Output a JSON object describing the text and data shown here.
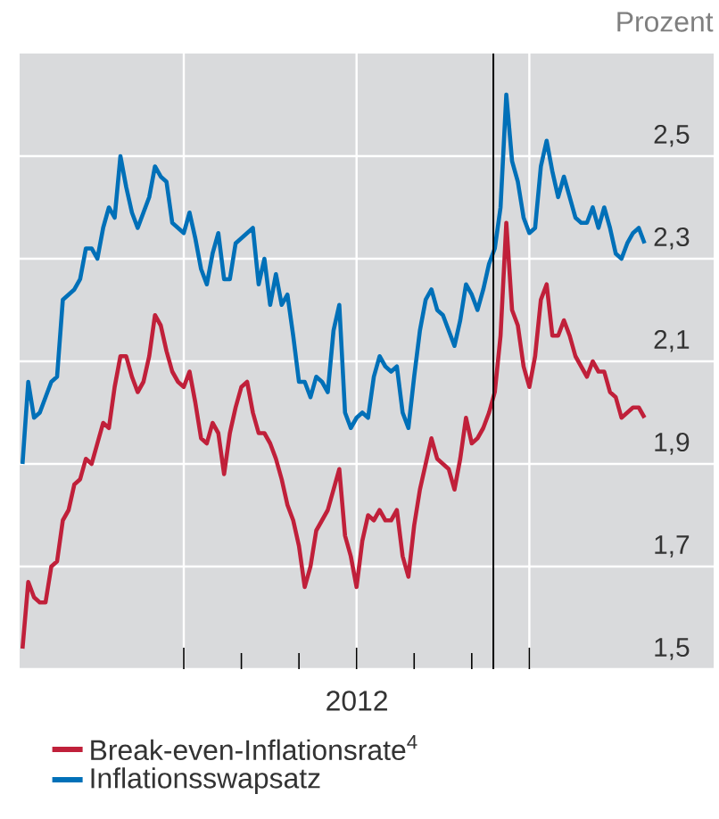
{
  "chart_data": {
    "type": "line",
    "xlabel": "2012",
    "ylabel": "Prozent",
    "categories": [
      null,
      null,
      null,
      null,
      null,
      null,
      null,
      null,
      null,
      null,
      null,
      null,
      null,
      null,
      null,
      null,
      null,
      null,
      null,
      null,
      null,
      null,
      null,
      null,
      null,
      null,
      null,
      null,
      null,
      null,
      null,
      null,
      null,
      null,
      null,
      null,
      null,
      null,
      null,
      null,
      null,
      null,
      null,
      null,
      null,
      null,
      null,
      null,
      null,
      null,
      null,
      null,
      null,
      null,
      null,
      null,
      null,
      null,
      null,
      null,
      null,
      null,
      null,
      null,
      null,
      null,
      null,
      null,
      null,
      null,
      null,
      null,
      null,
      null,
      null,
      null,
      null,
      null,
      null,
      null,
      null,
      null,
      null,
      null,
      null,
      null,
      null,
      null,
      null,
      null,
      null,
      null,
      null,
      null,
      null,
      null,
      null,
      null,
      null,
      null,
      null,
      null,
      null,
      null,
      null,
      null,
      null,
      null,
      null
    ],
    "ylim": [
      1.5,
      2.7
    ],
    "yticks": [
      {
        "value": 1.5,
        "label": "1,5"
      },
      {
        "value": 1.7,
        "label": "1,7"
      },
      {
        "value": 1.9,
        "label": "1,9"
      },
      {
        "value": 2.1,
        "label": "2,1"
      },
      {
        "value": 2.3,
        "label": "2,3"
      },
      {
        "value": 2.5,
        "label": "2,5"
      }
    ],
    "grid": true,
    "legend": "bottom",
    "line_style": "solid",
    "series": [
      {
        "name": "Break-even-Inflationsrate$^{4}$",
        "color": "#c0203a",
        "values": [
          1.54,
          1.67,
          1.64,
          1.63,
          1.63,
          1.7,
          1.71,
          1.79,
          1.81,
          1.86,
          1.87,
          1.91,
          1.9,
          1.94,
          1.98,
          1.97,
          2.05,
          2.11,
          2.11,
          2.07,
          2.04,
          2.06,
          2.11,
          2.19,
          2.17,
          2.12,
          2.08,
          2.06,
          2.05,
          2.08,
          2.02,
          1.95,
          1.94,
          1.98,
          1.96,
          1.88,
          1.96,
          2.01,
          2.05,
          2.06,
          2.0,
          1.96,
          1.96,
          1.94,
          1.91,
          1.87,
          1.82,
          1.79,
          1.74,
          1.66,
          1.7,
          1.77,
          1.79,
          1.81,
          1.85,
          1.89,
          1.76,
          1.72,
          1.66,
          1.75,
          1.8,
          1.79,
          1.81,
          1.79,
          1.79,
          1.81,
          1.72,
          1.68,
          1.78,
          1.85,
          1.9,
          1.95,
          1.91,
          1.9,
          1.89,
          1.85,
          1.91,
          1.99,
          1.94,
          1.95,
          1.97,
          2.0,
          2.04,
          2.15,
          2.37,
          2.2,
          2.17,
          2.09,
          2.05,
          2.11,
          2.22,
          2.25,
          2.15,
          2.15,
          2.18,
          2.15,
          2.11,
          2.09,
          2.07,
          2.1,
          2.08,
          2.08,
          2.04,
          2.03,
          1.99,
          2.0,
          2.01,
          2.01,
          1.99
        ]
      },
      {
        "name": "Inflationsswapsatz",
        "color": "#0070b8",
        "values": [
          1.9,
          2.06,
          1.99,
          2.0,
          2.03,
          2.06,
          2.07,
          2.22,
          2.23,
          2.24,
          2.26,
          2.32,
          2.32,
          2.3,
          2.36,
          2.4,
          2.38,
          2.5,
          2.44,
          2.39,
          2.36,
          2.39,
          2.42,
          2.48,
          2.46,
          2.45,
          2.37,
          2.36,
          2.35,
          2.39,
          2.34,
          2.28,
          2.25,
          2.31,
          2.35,
          2.26,
          2.26,
          2.33,
          2.34,
          2.35,
          2.36,
          2.25,
          2.3,
          2.21,
          2.27,
          2.21,
          2.23,
          2.15,
          2.06,
          2.06,
          2.03,
          2.07,
          2.06,
          2.04,
          2.16,
          2.21,
          2.0,
          1.97,
          1.99,
          2.0,
          1.99,
          2.07,
          2.11,
          2.09,
          2.08,
          2.09,
          2.0,
          1.97,
          2.07,
          2.16,
          2.22,
          2.24,
          2.2,
          2.19,
          2.16,
          2.13,
          2.18,
          2.25,
          2.23,
          2.2,
          2.24,
          2.29,
          2.32,
          2.4,
          2.62,
          2.49,
          2.45,
          2.38,
          2.35,
          2.36,
          2.48,
          2.53,
          2.47,
          2.42,
          2.46,
          2.42,
          2.38,
          2.37,
          2.37,
          2.4,
          2.36,
          2.4,
          2.36,
          2.31,
          2.3,
          2.33,
          2.35,
          2.36,
          2.33
        ]
      }
    ]
  }
}
